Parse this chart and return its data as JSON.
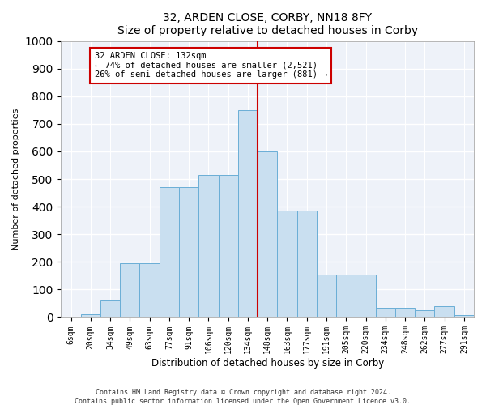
{
  "title": "32, ARDEN CLOSE, CORBY, NN18 8FY",
  "subtitle": "Size of property relative to detached houses in Corby",
  "xlabel": "Distribution of detached houses by size in Corby",
  "ylabel": "Number of detached properties",
  "categories": [
    "6sqm",
    "20sqm",
    "34sqm",
    "49sqm",
    "63sqm",
    "77sqm",
    "91sqm",
    "106sqm",
    "120sqm",
    "134sqm",
    "148sqm",
    "163sqm",
    "177sqm",
    "191sqm",
    "205sqm",
    "220sqm",
    "234sqm",
    "248sqm",
    "262sqm",
    "277sqm",
    "291sqm"
  ],
  "bar_heights": [
    0,
    10,
    63,
    195,
    195,
    470,
    470,
    515,
    515,
    750,
    600,
    385,
    385,
    155,
    155,
    155,
    35,
    35,
    25,
    40,
    8
  ],
  "annotation_line1": "32 ARDEN CLOSE: 132sqm",
  "annotation_line2": "← 74% of detached houses are smaller (2,521)",
  "annotation_line3": "26% of semi-detached houses are larger (881) →",
  "bar_color": "#c9dff0",
  "bar_edge_color": "#6aaed6",
  "vline_color": "#cc0000",
  "annotation_box_edgecolor": "#cc0000",
  "bg_color": "#eef2f9",
  "grid_color": "#ffffff",
  "ylim": [
    0,
    1000
  ],
  "vline_x_index": 9.5,
  "footer1": "Contains HM Land Registry data © Crown copyright and database right 2024.",
  "footer2": "Contains public sector information licensed under the Open Government Licence v3.0."
}
